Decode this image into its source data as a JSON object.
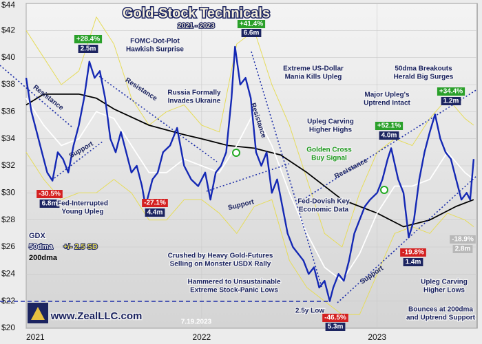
{
  "chart_data": {
    "type": "line",
    "title": "Gold-Stock Technicals",
    "subtitle": "2021 - 2023",
    "xlim": [
      2021,
      2023.57
    ],
    "xticks": [
      2021,
      2022,
      2023
    ],
    "ylim": [
      20,
      44
    ],
    "yticks": [
      {
        "value": 20,
        "label": "$20"
      },
      {
        "value": 22,
        "label": "$22"
      },
      {
        "value": 24,
        "label": "$24"
      },
      {
        "value": 26,
        "label": "$26"
      },
      {
        "value": 28,
        "label": "$28"
      },
      {
        "value": 30,
        "label": "$30"
      },
      {
        "value": 32,
        "label": "$32"
      },
      {
        "value": 34,
        "label": "$34"
      },
      {
        "value": 36,
        "label": "$36"
      },
      {
        "value": 38,
        "label": "$38"
      },
      {
        "value": 40,
        "label": "$40"
      },
      {
        "value": 42,
        "label": "$42"
      },
      {
        "value": 44,
        "label": "$44"
      }
    ],
    "grid": true,
    "legend": "bottom-left",
    "series": [
      {
        "name": "GDX",
        "color": "#1428b4",
        "x": [
          2021.0,
          2021.03,
          2021.06,
          2021.09,
          2021.12,
          2021.15,
          2021.18,
          2021.21,
          2021.24,
          2021.27,
          2021.3,
          2021.33,
          2021.36,
          2021.39,
          2021.42,
          2021.45,
          2021.48,
          2021.51,
          2021.54,
          2021.57,
          2021.6,
          2021.63,
          2021.66,
          2021.68,
          2021.72,
          2021.75,
          2021.78,
          2021.82,
          2021.86,
          2021.9,
          2021.94,
          2021.98,
          2022.02,
          2022.05,
          2022.08,
          2022.11,
          2022.14,
          2022.17,
          2022.19,
          2022.22,
          2022.25,
          2022.28,
          2022.31,
          2022.34,
          2022.37,
          2022.4,
          2022.43,
          2022.46,
          2022.49,
          2022.52,
          2022.55,
          2022.58,
          2022.61,
          2022.64,
          2022.67,
          2022.7,
          2022.73,
          2022.75,
          2022.78,
          2022.81,
          2022.84,
          2022.87,
          2022.9,
          2022.93,
          2022.96,
          2023.0,
          2023.03,
          2023.06,
          2023.08,
          2023.12,
          2023.15,
          2023.18,
          2023.21,
          2023.24,
          2023.27,
          2023.3,
          2023.33,
          2023.36,
          2023.39,
          2023.42,
          2023.45,
          2023.48,
          2023.51,
          2023.53,
          2023.55
        ],
        "values": [
          38.5,
          36,
          34.5,
          33,
          31.5,
          30.9,
          33,
          32.5,
          31.5,
          33.5,
          35,
          37,
          39.7,
          38.5,
          39,
          37,
          34,
          33,
          34.5,
          33,
          31.5,
          32,
          30.5,
          29,
          31,
          31.5,
          33,
          33.5,
          34.8,
          32,
          31,
          30.5,
          31.5,
          29.5,
          31.5,
          32,
          33,
          37,
          40.8,
          38,
          38.5,
          37,
          33,
          32,
          33,
          30,
          31,
          29,
          27,
          26,
          25.5,
          25,
          24,
          24.5,
          23,
          23.5,
          22,
          23,
          24,
          23.5,
          25,
          27,
          28,
          29,
          29.5,
          30,
          31,
          32.5,
          33.3,
          31,
          30,
          26.7,
          28,
          31,
          33,
          34.5,
          35.8,
          34,
          33,
          32.5,
          31,
          29.5,
          30,
          29.5,
          32.5
        ]
      },
      {
        "name": "50dma",
        "color": "#ffffff",
        "x": [
          2021.0,
          2021.1,
          2021.2,
          2021.3,
          2021.4,
          2021.5,
          2021.6,
          2021.7,
          2021.8,
          2021.9,
          2022.0,
          2022.1,
          2022.2,
          2022.3,
          2022.4,
          2022.5,
          2022.6,
          2022.7,
          2022.8,
          2022.9,
          2023.0,
          2023.1,
          2023.2,
          2023.3,
          2023.4,
          2023.5,
          2023.55
        ],
        "values": [
          37,
          35,
          33.5,
          34,
          36,
          35.5,
          33.5,
          31.5,
          31.5,
          32.5,
          32,
          31.5,
          33.5,
          36,
          33.5,
          30,
          27,
          24.5,
          23.5,
          25.5,
          28.5,
          30.5,
          30.5,
          31,
          33,
          31.5,
          31
        ]
      },
      {
        "name": "200dma",
        "color": "#000000",
        "x": [
          2021.0,
          2021.1,
          2021.3,
          2021.4,
          2021.5,
          2021.7,
          2021.9,
          2022.0,
          2022.15,
          2022.3,
          2022.45,
          2022.6,
          2022.8,
          2023.0,
          2023.15,
          2023.3,
          2023.45,
          2023.55
        ],
        "values": [
          36.5,
          37.3,
          37.3,
          37,
          36.2,
          35,
          34.3,
          34,
          33.5,
          33.3,
          32.8,
          31.5,
          29.5,
          28.5,
          27.5,
          28,
          29,
          29.5
        ]
      },
      {
        "name": "+/- 2.5 SD",
        "color": "#e6dc5a",
        "x": [
          2021.0,
          2021.1,
          2021.2,
          2021.3,
          2021.4,
          2021.5,
          2021.6,
          2021.7,
          2021.8,
          2021.9,
          2022.0,
          2022.1,
          2022.2,
          2022.3,
          2022.4,
          2022.5,
          2022.6,
          2022.7,
          2022.8,
          2022.9,
          2023.0,
          2023.1,
          2023.2,
          2023.3,
          2023.4,
          2023.5,
          2023.55
        ],
        "values": [
          42,
          40,
          38,
          39,
          43,
          41,
          37,
          35,
          36,
          36.5,
          35,
          34.5,
          41,
          42,
          38,
          35,
          31,
          27,
          26,
          30,
          33,
          34,
          33.5,
          35.5,
          37,
          35.5,
          35
        ],
        "lower": [
          33,
          31,
          29.5,
          30,
          30,
          31,
          30,
          28,
          28,
          29.5,
          29.5,
          28.5,
          27,
          29,
          29.5,
          25,
          23,
          22,
          21,
          21,
          24,
          27,
          27.5,
          27,
          28.5,
          28,
          27.5
        ]
      }
    ],
    "annotations": [
      {
        "lines": [
          "+28.4%"
        ],
        "color": "#ffffff",
        "box": "#2aa02a"
      },
      {
        "lines": [
          "2.5m"
        ],
        "color": "#ffffff",
        "box": "#1c2460"
      },
      {
        "lines": [
          "FOMC-Dot-Plot",
          "Hawkish Surprise"
        ],
        "color": "#1c2460"
      },
      {
        "lines": [
          "+41.4%"
        ],
        "color": "#ffffff",
        "box": "#2aa02a"
      },
      {
        "lines": [
          "6.6m"
        ],
        "color": "#ffffff",
        "box": "#1c2460"
      },
      {
        "lines": [
          "Extreme US-Dollar",
          "Mania Kills Upleg"
        ],
        "color": "#1c2460"
      },
      {
        "lines": [
          "Russia Formally",
          "Invades Ukraine"
        ],
        "color": "#1c2460"
      },
      {
        "lines": [
          "50dma Breakouts",
          "Herald Big Surges"
        ],
        "color": "#1c2460"
      },
      {
        "lines": [
          "Major Upleg's",
          "Uptrend Intact"
        ],
        "color": "#1c2460"
      },
      {
        "lines": [
          "+34.4%"
        ],
        "color": "#ffffff",
        "box": "#2aa02a"
      },
      {
        "lines": [
          "1.2m"
        ],
        "color": "#ffffff",
        "box": "#1c2460"
      },
      {
        "lines": [
          "Upleg Carving",
          "Higher Highs"
        ],
        "color": "#1c2460"
      },
      {
        "lines": [
          "+52.1%"
        ],
        "color": "#ffffff",
        "box": "#2aa02a"
      },
      {
        "lines": [
          "4.0m"
        ],
        "color": "#ffffff",
        "box": "#1c2460"
      },
      {
        "lines": [
          "Golden Cross",
          "Buy Signal"
        ],
        "color": "#1f9a1f"
      },
      {
        "lines": [
          "-30.5%"
        ],
        "color": "#ffffff",
        "box": "#d42020"
      },
      {
        "lines": [
          "6.8m"
        ],
        "color": "#ffffff",
        "box": "#1c2460"
      },
      {
        "lines": [
          "Fed-Interrupted",
          "Young Upleg"
        ],
        "color": "#1c2460"
      },
      {
        "lines": [
          "-27.1%"
        ],
        "color": "#ffffff",
        "box": "#d42020"
      },
      {
        "lines": [
          "4.4m"
        ],
        "color": "#ffffff",
        "box": "#1c2460"
      },
      {
        "lines": [
          "Fed-Dovish Key",
          "Economic Data"
        ],
        "color": "#1c2460"
      },
      {
        "lines": [
          "Crushed by Heavy Gold-Futures",
          "Selling on Monster USDX Rally"
        ],
        "color": "#1c2460"
      },
      {
        "lines": [
          "Hammered to Unsustainable",
          "Extreme Stock-Panic Lows"
        ],
        "color": "#1c2460"
      },
      {
        "lines": [
          "2.5y Low"
        ],
        "color": "#1c2460"
      },
      {
        "lines": [
          "-46.5%"
        ],
        "color": "#ffffff",
        "box": "#d42020"
      },
      {
        "lines": [
          "5.3m"
        ],
        "color": "#ffffff",
        "box": "#1c2460"
      },
      {
        "lines": [
          "-19.8%"
        ],
        "color": "#ffffff",
        "box": "#d42020"
      },
      {
        "lines": [
          "1.4m"
        ],
        "color": "#ffffff",
        "box": "#1c2460"
      },
      {
        "lines": [
          "-18.9%"
        ],
        "color": "#ffffff",
        "box": "#b8b8b8"
      },
      {
        "lines": [
          "2.8m"
        ],
        "color": "#ffffff",
        "box": "#b8b8b8"
      },
      {
        "lines": [
          "Upleg Carving",
          "Higher Lows"
        ],
        "color": "#1c2460"
      },
      {
        "lines": [
          "Bounces at 200dma",
          "and Uptrend Support"
        ],
        "color": "#1c2460"
      },
      {
        "lines": [
          "Resistance"
        ],
        "color": "#1c2460"
      },
      {
        "lines": [
          "Resistance"
        ],
        "color": "#1c2460"
      },
      {
        "lines": [
          "Resistance"
        ],
        "color": "#1c2460"
      },
      {
        "lines": [
          "Resistance"
        ],
        "color": "#1c2460"
      },
      {
        "lines": [
          "Support"
        ],
        "color": "#1c2460"
      },
      {
        "lines": [
          "Support"
        ],
        "color": "#1c2460"
      },
      {
        "lines": [
          "Support"
        ],
        "color": "#1c2460"
      },
      {
        "lines": [
          "7.19.2023"
        ],
        "color": "#ffffff"
      },
      {
        "lines": [
          "www.ZealLLC.com"
        ],
        "color": "#1c2460"
      }
    ]
  }
}
